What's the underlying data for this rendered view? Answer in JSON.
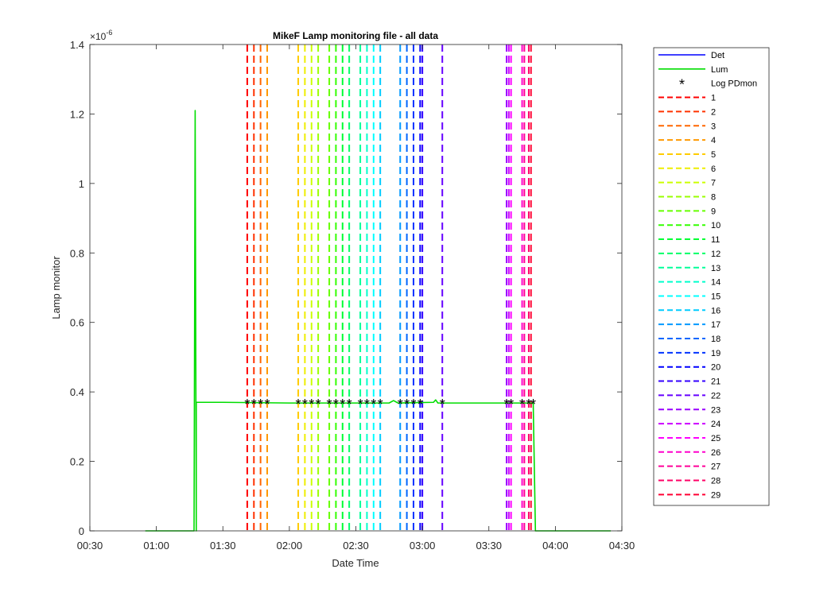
{
  "chart_data": {
    "type": "line",
    "title": "MikeF Lamp monitoring file - all data",
    "xlabel": "Date Time",
    "ylabel": "Lamp monitor",
    "y_exponent": "×10-6",
    "exp_base": "×10",
    "exp_power": "-6",
    "xlim": [
      "00:30",
      "04:30"
    ],
    "ylim": [
      0,
      1.4
    ],
    "x_ticks": [
      "00:30",
      "01:00",
      "01:30",
      "02:00",
      "02:30",
      "03:00",
      "03:30",
      "04:00",
      "04:30"
    ],
    "y_ticks": [
      "0",
      "0.2",
      "0.4",
      "0.6",
      "0.8",
      "1",
      "1.2",
      "1.4"
    ],
    "grid": false,
    "legend_position": "outside-right",
    "series": [
      {
        "name": "Det",
        "color": "#0000ff",
        "points": []
      },
      {
        "name": "Lum",
        "color": "#00dd00",
        "points": [
          [
            "00:55",
            0.0
          ],
          [
            "01:17",
            0.0
          ],
          [
            "01:17.5",
            1.21
          ],
          [
            "01:18",
            0.0
          ],
          [
            "01:18",
            0.37
          ],
          [
            "01:30",
            0.37
          ],
          [
            "02:00",
            0.368
          ],
          [
            "02:45",
            0.368
          ],
          [
            "02:47",
            0.375
          ],
          [
            "02:49",
            0.368
          ],
          [
            "03:05",
            0.37
          ],
          [
            "03:06",
            0.377
          ],
          [
            "03:07",
            0.368
          ],
          [
            "03:50",
            0.368
          ],
          [
            "03:51",
            0.0
          ],
          [
            "04:25",
            0.0
          ]
        ]
      }
    ],
    "markers": {
      "name": "Log PDmon",
      "symbol": "*",
      "color": "#000000",
      "times": [
        "01:41",
        "01:44",
        "01:47",
        "01:50",
        "02:04",
        "02:07",
        "02:10",
        "02:13",
        "02:18",
        "02:21",
        "02:24",
        "02:27",
        "02:32",
        "02:35",
        "02:38",
        "02:41",
        "02:50",
        "02:53",
        "02:56",
        "02:59",
        "03:09",
        "03:38",
        "03:40",
        "03:45",
        "03:48",
        "03:50"
      ],
      "y": 0.368
    },
    "vertical_lines": [
      {
        "name": "1",
        "time": "01:41",
        "color": "#ff0000"
      },
      {
        "name": "2",
        "time": "01:44",
        "color": "#ff3300"
      },
      {
        "name": "3",
        "time": "01:47",
        "color": "#ff6600"
      },
      {
        "name": "4",
        "time": "01:50",
        "color": "#ff9900"
      },
      {
        "name": "5",
        "time": "02:04",
        "color": "#ffcc00"
      },
      {
        "name": "6",
        "time": "02:07",
        "color": "#eeee00"
      },
      {
        "name": "7",
        "time": "02:10",
        "color": "#ccff00"
      },
      {
        "name": "8",
        "time": "02:13",
        "color": "#99ff00"
      },
      {
        "name": "9",
        "time": "02:18",
        "color": "#66ff00"
      },
      {
        "name": "10",
        "time": "02:21",
        "color": "#33ff00"
      },
      {
        "name": "11",
        "time": "02:24",
        "color": "#00ff33"
      },
      {
        "name": "12",
        "time": "02:27",
        "color": "#00ff66"
      },
      {
        "name": "13",
        "time": "02:32",
        "color": "#00ff99"
      },
      {
        "name": "14",
        "time": "02:35",
        "color": "#00ffcc"
      },
      {
        "name": "15",
        "time": "02:38",
        "color": "#00ffff"
      },
      {
        "name": "16",
        "time": "02:41",
        "color": "#00ccff"
      },
      {
        "name": "17",
        "time": "02:50",
        "color": "#0099ff"
      },
      {
        "name": "18",
        "time": "02:53",
        "color": "#0066ff"
      },
      {
        "name": "19",
        "time": "02:56",
        "color": "#0033ff"
      },
      {
        "name": "20",
        "time": "02:59",
        "color": "#0000ff"
      },
      {
        "name": "21",
        "time": "03:00",
        "color": "#3300ff"
      },
      {
        "name": "22",
        "time": "03:09",
        "color": "#6600ff"
      },
      {
        "name": "23",
        "time": "03:38",
        "color": "#9900ff"
      },
      {
        "name": "24",
        "time": "03:39",
        "color": "#cc00ff"
      },
      {
        "name": "25",
        "time": "03:40",
        "color": "#ff00ff"
      },
      {
        "name": "26",
        "time": "03:45",
        "color": "#ff00cc"
      },
      {
        "name": "27",
        "time": "03:46",
        "color": "#ff0099"
      },
      {
        "name": "28",
        "time": "03:48",
        "color": "#ff0066"
      },
      {
        "name": "29",
        "time": "03:49",
        "color": "#ff0033"
      }
    ]
  }
}
